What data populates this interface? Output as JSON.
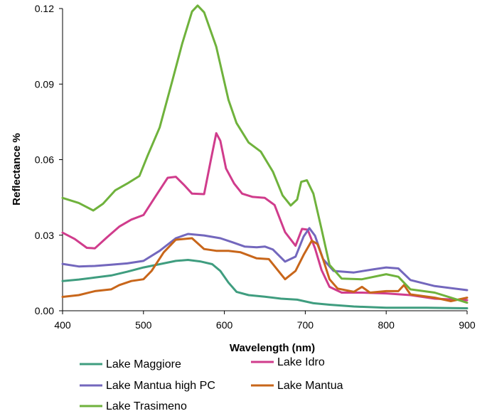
{
  "chart_data": {
    "type": "line",
    "title": "",
    "xlabel": "Wavelength (nm)",
    "ylabel": "Reflectance %",
    "xlim": [
      400,
      900
    ],
    "ylim": [
      0,
      0.12
    ],
    "x_ticks": [
      "400",
      "500",
      "600",
      "700",
      "800",
      "900"
    ],
    "y_ticks": [
      "0.00",
      "0.03",
      "0.06",
      "0.09",
      "0.12"
    ],
    "grid": false,
    "legend_position": "bottom",
    "series": [
      {
        "name": "Lake Maggiore",
        "color": "#3f9d7f",
        "points": [
          [
            400,
            0.0118
          ],
          [
            420,
            0.0124
          ],
          [
            440,
            0.0132
          ],
          [
            460,
            0.014
          ],
          [
            480,
            0.0155
          ],
          [
            500,
            0.0172
          ],
          [
            520,
            0.0185
          ],
          [
            540,
            0.0198
          ],
          [
            555,
            0.0202
          ],
          [
            570,
            0.0196
          ],
          [
            585,
            0.0185
          ],
          [
            595,
            0.0158
          ],
          [
            605,
            0.0112
          ],
          [
            615,
            0.0075
          ],
          [
            630,
            0.0062
          ],
          [
            650,
            0.0056
          ],
          [
            670,
            0.0048
          ],
          [
            690,
            0.0044
          ],
          [
            710,
            0.003
          ],
          [
            730,
            0.0024
          ],
          [
            760,
            0.0017
          ],
          [
            800,
            0.0012
          ],
          [
            850,
            0.0012
          ],
          [
            900,
            0.001
          ]
        ]
      },
      {
        "name": "Lake Idro",
        "color": "#d03c8c",
        "points": [
          [
            400,
            0.031
          ],
          [
            415,
            0.0285
          ],
          [
            430,
            0.025
          ],
          [
            440,
            0.0248
          ],
          [
            455,
            0.0292
          ],
          [
            470,
            0.0334
          ],
          [
            485,
            0.0362
          ],
          [
            500,
            0.038
          ],
          [
            515,
            0.0455
          ],
          [
            530,
            0.0528
          ],
          [
            540,
            0.0532
          ],
          [
            550,
            0.05
          ],
          [
            560,
            0.0465
          ],
          [
            575,
            0.0463
          ],
          [
            583,
            0.0595
          ],
          [
            590,
            0.0705
          ],
          [
            595,
            0.0675
          ],
          [
            602,
            0.0565
          ],
          [
            612,
            0.0505
          ],
          [
            622,
            0.0465
          ],
          [
            635,
            0.0452
          ],
          [
            650,
            0.0448
          ],
          [
            662,
            0.042
          ],
          [
            675,
            0.0312
          ],
          [
            688,
            0.0258
          ],
          [
            696,
            0.0325
          ],
          [
            703,
            0.0322
          ],
          [
            712,
            0.0248
          ],
          [
            720,
            0.0162
          ],
          [
            730,
            0.0095
          ],
          [
            745,
            0.0072
          ],
          [
            770,
            0.0072
          ],
          [
            800,
            0.0069
          ],
          [
            830,
            0.0062
          ],
          [
            860,
            0.0048
          ],
          [
            900,
            0.0042
          ]
        ]
      },
      {
        "name": "Lake Mantua high PC",
        "color": "#7367bd",
        "points": [
          [
            400,
            0.0186
          ],
          [
            420,
            0.0176
          ],
          [
            440,
            0.0178
          ],
          [
            460,
            0.0183
          ],
          [
            480,
            0.0188
          ],
          [
            500,
            0.0198
          ],
          [
            520,
            0.0238
          ],
          [
            540,
            0.0288
          ],
          [
            555,
            0.0305
          ],
          [
            575,
            0.0299
          ],
          [
            595,
            0.0288
          ],
          [
            610,
            0.0272
          ],
          [
            625,
            0.0255
          ],
          [
            640,
            0.0252
          ],
          [
            650,
            0.0255
          ],
          [
            660,
            0.0243
          ],
          [
            675,
            0.0195
          ],
          [
            688,
            0.0215
          ],
          [
            698,
            0.0295
          ],
          [
            705,
            0.0328
          ],
          [
            712,
            0.0298
          ],
          [
            722,
            0.0205
          ],
          [
            735,
            0.0158
          ],
          [
            760,
            0.0152
          ],
          [
            785,
            0.0165
          ],
          [
            800,
            0.0172
          ],
          [
            815,
            0.0168
          ],
          [
            830,
            0.0122
          ],
          [
            860,
            0.0098
          ],
          [
            900,
            0.0082
          ]
        ]
      },
      {
        "name": "Lake Mantua",
        "color": "#c8661a",
        "points": [
          [
            400,
            0.0055
          ],
          [
            420,
            0.0062
          ],
          [
            440,
            0.0078
          ],
          [
            460,
            0.0085
          ],
          [
            470,
            0.0102
          ],
          [
            485,
            0.0118
          ],
          [
            500,
            0.0125
          ],
          [
            510,
            0.0158
          ],
          [
            525,
            0.0232
          ],
          [
            540,
            0.0282
          ],
          [
            560,
            0.0288
          ],
          [
            575,
            0.0245
          ],
          [
            590,
            0.0238
          ],
          [
            605,
            0.0238
          ],
          [
            620,
            0.0232
          ],
          [
            640,
            0.0208
          ],
          [
            655,
            0.0205
          ],
          [
            665,
            0.0165
          ],
          [
            675,
            0.0125
          ],
          [
            688,
            0.0158
          ],
          [
            698,
            0.0222
          ],
          [
            708,
            0.0278
          ],
          [
            715,
            0.0265
          ],
          [
            722,
            0.0205
          ],
          [
            730,
            0.0125
          ],
          [
            740,
            0.0088
          ],
          [
            760,
            0.0075
          ],
          [
            770,
            0.0095
          ],
          [
            780,
            0.0072
          ],
          [
            800,
            0.0078
          ],
          [
            815,
            0.0078
          ],
          [
            822,
            0.0102
          ],
          [
            830,
            0.0065
          ],
          [
            860,
            0.0052
          ],
          [
            880,
            0.0038
          ],
          [
            900,
            0.0052
          ]
        ]
      },
      {
        "name": "Lake Trasimeno",
        "color": "#6fb23c",
        "points": [
          [
            400,
            0.0448
          ],
          [
            420,
            0.0428
          ],
          [
            438,
            0.0398
          ],
          [
            450,
            0.0425
          ],
          [
            465,
            0.0478
          ],
          [
            480,
            0.0505
          ],
          [
            495,
            0.0535
          ],
          [
            505,
            0.0615
          ],
          [
            520,
            0.0728
          ],
          [
            535,
            0.0905
          ],
          [
            548,
            0.1062
          ],
          [
            560,
            0.1188
          ],
          [
            567,
            0.1212
          ],
          [
            575,
            0.1185
          ],
          [
            590,
            0.1048
          ],
          [
            605,
            0.0838
          ],
          [
            615,
            0.0745
          ],
          [
            630,
            0.0668
          ],
          [
            645,
            0.0632
          ],
          [
            660,
            0.0552
          ],
          [
            672,
            0.0458
          ],
          [
            682,
            0.0418
          ],
          [
            690,
            0.0442
          ],
          [
            695,
            0.0512
          ],
          [
            702,
            0.0518
          ],
          [
            710,
            0.0465
          ],
          [
            720,
            0.0325
          ],
          [
            730,
            0.0182
          ],
          [
            745,
            0.0128
          ],
          [
            770,
            0.0125
          ],
          [
            800,
            0.0145
          ],
          [
            815,
            0.0135
          ],
          [
            830,
            0.0085
          ],
          [
            860,
            0.0072
          ],
          [
            880,
            0.0052
          ],
          [
            900,
            0.0032
          ]
        ]
      }
    ]
  }
}
